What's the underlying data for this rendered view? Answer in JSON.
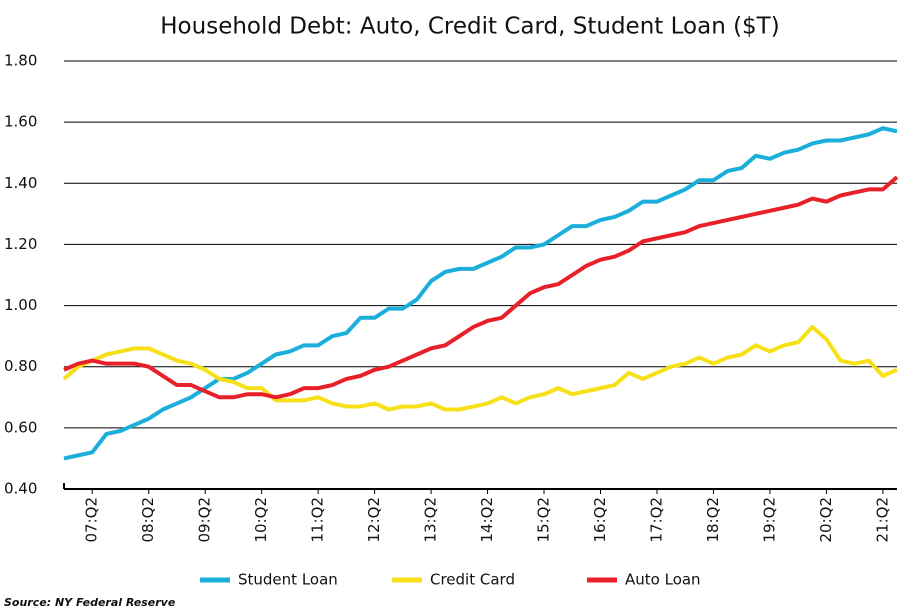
{
  "chart_data": {
    "type": "line",
    "title": "Household Debt: Auto, Credit Card, Student Loan ($T)",
    "source": "Source: NY Federal Reserve",
    "categories": [
      null,
      null,
      "07:Q2",
      null,
      null,
      null,
      "08:Q2",
      null,
      null,
      null,
      "09:Q2",
      null,
      null,
      null,
      "10:Q2",
      null,
      null,
      null,
      "11:Q2",
      null,
      null,
      null,
      "12:Q2",
      null,
      null,
      null,
      "13:Q2",
      null,
      null,
      null,
      "14:Q2",
      null,
      null,
      null,
      "15:Q2",
      null,
      null,
      null,
      "16:Q2",
      null,
      null,
      null,
      "17:Q2",
      null,
      null,
      null,
      "18:Q2",
      null,
      null,
      null,
      "19:Q2",
      null,
      null,
      null,
      "20:Q2",
      null,
      null,
      null,
      "21:Q2",
      null
    ],
    "series": [
      {
        "name": "Student Loan",
        "color": "#1aaedb",
        "values": [
          0.5,
          0.51,
          0.52,
          0.58,
          0.59,
          0.61,
          0.63,
          0.66,
          0.68,
          0.7,
          0.73,
          0.76,
          0.76,
          0.78,
          0.81,
          0.84,
          0.85,
          0.87,
          0.87,
          0.9,
          0.91,
          0.96,
          0.96,
          0.99,
          0.99,
          1.02,
          1.08,
          1.11,
          1.12,
          1.12,
          1.14,
          1.16,
          1.19,
          1.19,
          1.2,
          1.23,
          1.26,
          1.26,
          1.28,
          1.29,
          1.31,
          1.34,
          1.34,
          1.36,
          1.38,
          1.41,
          1.41,
          1.44,
          1.45,
          1.49,
          1.48,
          1.5,
          1.51,
          1.53,
          1.54,
          1.54,
          1.55,
          1.56,
          1.58,
          1.57
        ]
      },
      {
        "name": "Credit Card",
        "color": "#f7e017",
        "values": [
          0.76,
          0.8,
          0.82,
          0.84,
          0.85,
          0.86,
          0.86,
          0.84,
          0.82,
          0.81,
          0.79,
          0.76,
          0.75,
          0.73,
          0.73,
          0.69,
          0.69,
          0.69,
          0.7,
          0.68,
          0.67,
          0.67,
          0.68,
          0.66,
          0.67,
          0.67,
          0.68,
          0.66,
          0.66,
          0.67,
          0.68,
          0.7,
          0.68,
          0.7,
          0.71,
          0.73,
          0.71,
          0.72,
          0.73,
          0.74,
          0.78,
          0.76,
          0.78,
          0.8,
          0.81,
          0.83,
          0.81,
          0.83,
          0.84,
          0.87,
          0.85,
          0.87,
          0.88,
          0.93,
          0.89,
          0.82,
          0.81,
          0.82,
          0.77,
          0.79
        ]
      },
      {
        "name": "Auto Loan",
        "color": "#e8202a",
        "values": [
          0.79,
          0.81,
          0.82,
          0.81,
          0.81,
          0.81,
          0.8,
          0.77,
          0.74,
          0.74,
          0.72,
          0.7,
          0.7,
          0.71,
          0.71,
          0.7,
          0.71,
          0.73,
          0.73,
          0.74,
          0.76,
          0.77,
          0.79,
          0.8,
          0.82,
          0.84,
          0.86,
          0.87,
          0.9,
          0.93,
          0.95,
          0.96,
          1.0,
          1.04,
          1.06,
          1.07,
          1.1,
          1.13,
          1.15,
          1.16,
          1.18,
          1.21,
          1.22,
          1.23,
          1.24,
          1.26,
          1.27,
          1.28,
          1.29,
          1.3,
          1.31,
          1.32,
          1.33,
          1.35,
          1.34,
          1.36,
          1.37,
          1.38,
          1.38,
          1.42
        ]
      }
    ],
    "ylim": [
      0.4,
      1.8
    ],
    "yticks": [
      {
        "value": 0.4,
        "label": "0.40"
      },
      {
        "value": 0.6,
        "label": "0.60"
      },
      {
        "value": 0.8,
        "label": "0.80"
      },
      {
        "value": 1.0,
        "label": "1.00"
      },
      {
        "value": 1.2,
        "label": "1.20"
      },
      {
        "value": 1.4,
        "label": "1.40"
      },
      {
        "value": 1.6,
        "label": "1.60"
      },
      {
        "value": 1.8,
        "label": "1.80"
      }
    ],
    "grid": true,
    "legend": "bottom"
  }
}
